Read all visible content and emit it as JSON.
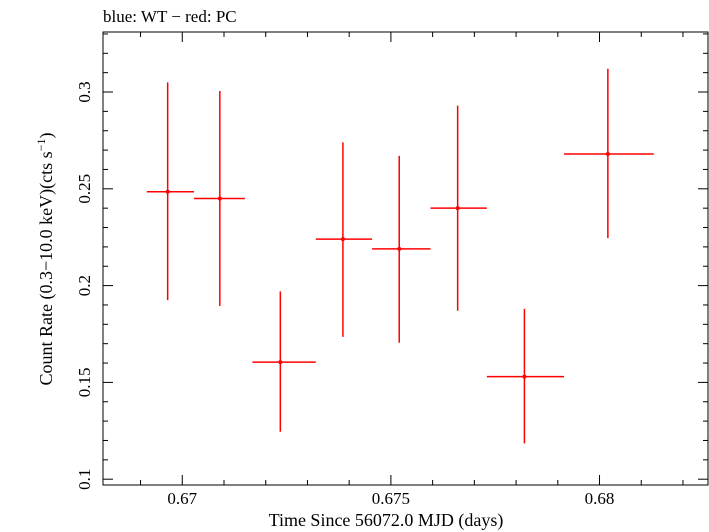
{
  "chart_data": {
    "type": "scatter",
    "title": "blue: WT − red: PC",
    "xlabel": "Time Since 56072.0 MJD (days)",
    "ylabel_main": "Count Rate (0.3−10.0 keV)(cts s",
    "ylabel_sup": "−1",
    "ylabel_close": ")",
    "xlim": [
      0.6681,
      0.6826
    ],
    "ylim": [
      0.097,
      0.331
    ],
    "xticks": [
      {
        "value": 0.67,
        "label": "0.67"
      },
      {
        "value": 0.675,
        "label": "0.675"
      },
      {
        "value": 0.68,
        "label": "0.68"
      }
    ],
    "yticks": [
      {
        "value": 0.1,
        "label": "0.1"
      },
      {
        "value": 0.15,
        "label": "0.15"
      },
      {
        "value": 0.2,
        "label": "0.2"
      },
      {
        "value": 0.25,
        "label": "0.25"
      },
      {
        "value": 0.3,
        "label": "0.3"
      }
    ],
    "x_minor_step": 0.001,
    "y_minor_step": 0.01,
    "series": [
      {
        "name": "PC",
        "color": "#ff0000",
        "points": [
          {
            "x": 0.66965,
            "xlo": 0.66915,
            "xhi": 0.67028,
            "y": 0.2485,
            "ylo": 0.1925,
            "yhi": 0.305
          },
          {
            "x": 0.6709,
            "xlo": 0.67028,
            "xhi": 0.6715,
            "y": 0.245,
            "ylo": 0.1895,
            "yhi": 0.3005
          },
          {
            "x": 0.67235,
            "xlo": 0.67168,
            "xhi": 0.6732,
            "y": 0.1605,
            "ylo": 0.1245,
            "yhi": 0.197
          },
          {
            "x": 0.67385,
            "xlo": 0.6732,
            "xhi": 0.67455,
            "y": 0.224,
            "ylo": 0.1735,
            "yhi": 0.274
          },
          {
            "x": 0.6752,
            "xlo": 0.67455,
            "xhi": 0.67595,
            "y": 0.219,
            "ylo": 0.1705,
            "yhi": 0.267
          },
          {
            "x": 0.6766,
            "xlo": 0.67595,
            "xhi": 0.6773,
            "y": 0.24,
            "ylo": 0.187,
            "yhi": 0.293
          },
          {
            "x": 0.6782,
            "xlo": 0.6773,
            "xhi": 0.67915,
            "y": 0.153,
            "ylo": 0.1185,
            "yhi": 0.188
          },
          {
            "x": 0.6802,
            "xlo": 0.67915,
            "xhi": 0.6813,
            "y": 0.268,
            "ylo": 0.2245,
            "yhi": 0.312
          }
        ]
      }
    ]
  }
}
